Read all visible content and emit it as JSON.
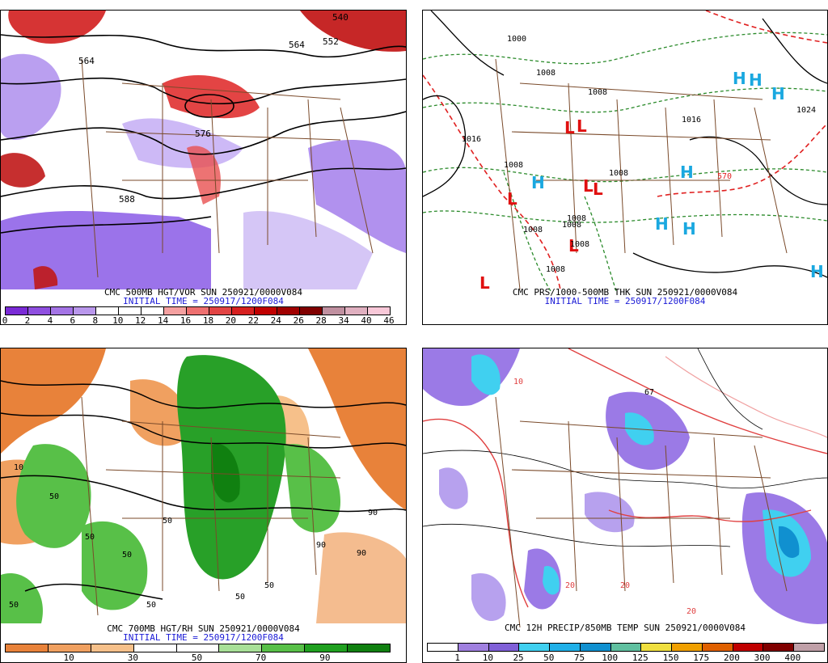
{
  "panels": [
    {
      "id": "vort",
      "title": "CMC 500MB HGT/VOR SUN 250921/0000V084",
      "initial": "INITIAL TIME = 250917/1200F084",
      "colorbar": {
        "colors": [
          "#7a2bd6",
          "#8f4fe0",
          "#a474e6",
          "#b997ec",
          "#ffffff",
          "#ffffff",
          "#ffffff",
          "#f4a0a0",
          "#ee7070",
          "#e24444",
          "#d62020",
          "#c00000",
          "#a00000",
          "#800000",
          "#c090a0",
          "#e0b0c0",
          "#f8c8d8"
        ],
        "labels": [
          "0",
          "2",
          "4",
          "6",
          "8",
          "10",
          "12",
          "14",
          "16",
          "18",
          "20",
          "22",
          "24",
          "26",
          "28",
          "34",
          "40",
          "46"
        ]
      },
      "contour_labels": [
        "540",
        "552",
        "564",
        "564",
        "576",
        "588"
      ]
    },
    {
      "id": "mslp",
      "title": "CMC PRS/1000-500MB THK SUN 250921/0000V084",
      "initial": "INITIAL TIME = 250917/1200F084",
      "highs": [
        "H",
        "H",
        "H",
        "H",
        "H",
        "H",
        "H",
        "H"
      ],
      "lows": [
        "L",
        "L",
        "L",
        "L",
        "L",
        "L",
        "L"
      ],
      "isobar_labels": [
        "1000",
        "1008",
        "1008",
        "1016",
        "1016",
        "1024",
        "1008",
        "1008",
        "1008",
        "1008",
        "1008",
        "1008",
        "1008",
        "570"
      ]
    },
    {
      "id": "rh",
      "title": "CMC 700MB HGT/RH SUN 250921/0000V084",
      "initial": "INITIAL TIME = 250917/1200F084",
      "colorbar": {
        "colors": [
          "#e8823a",
          "#f0a060",
          "#f6c08a",
          "#ffffff",
          "#ffffff",
          "#a8e098",
          "#58c048",
          "#20a020",
          "#108010"
        ],
        "labels": [
          "10",
          "30",
          "50",
          "70",
          "90"
        ]
      },
      "rh_labels": [
        "50",
        "50",
        "50",
        "90",
        "90",
        "10",
        "50",
        "90",
        "50",
        "50",
        "50",
        "50"
      ]
    },
    {
      "id": "precip",
      "title": "CMC 12H PRECIP/850MB TEMP SUN 250921/0000V084",
      "colorbar": {
        "colors": [
          "#ffffff",
          "#a080e0",
          "#8060d8",
          "#40d0f0",
          "#20b0e8",
          "#1090d0",
          "#60c0a0",
          "#f0e040",
          "#f0a000",
          "#e06000",
          "#c00000",
          "#800000",
          "#c0a0a8"
        ],
        "labels": [
          "1",
          "10",
          "25",
          "50",
          "75",
          "100",
          "125",
          "150",
          "175",
          "200",
          "300",
          "400"
        ]
      },
      "temp_labels": [
        "20",
        "20",
        "20",
        "10",
        "67"
      ]
    }
  ]
}
